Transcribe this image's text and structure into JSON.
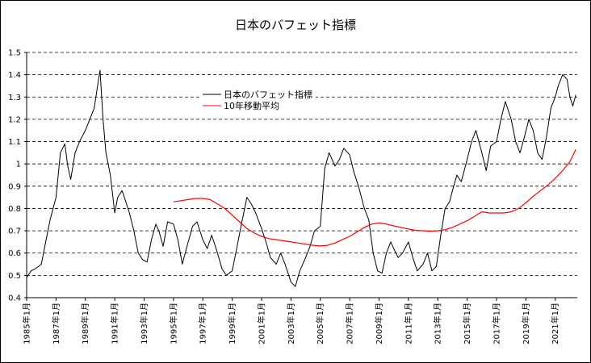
{
  "chart_data": {
    "type": "line",
    "title": "日本のバフェット指標",
    "xlabel": "",
    "ylabel": "",
    "ylim": [
      0.4,
      1.5
    ],
    "xlim": [
      "1985-01",
      "2022-06"
    ],
    "grid": "horizontal dashed",
    "legend_position": "top-center",
    "y_ticks": [
      "0.4",
      "0.5",
      "0.6",
      "0.7",
      "0.8",
      "0.9",
      "1",
      "1.1",
      "1.2",
      "1.3",
      "1.4",
      "1.5"
    ],
    "x_ticks": [
      "1985年1月",
      "1987年1月",
      "1989年1月",
      "1991年1月",
      "1993年1月",
      "1995年1月",
      "1997年1月",
      "1999年1月",
      "2001年1月",
      "2003年1月",
      "2005年1月",
      "2007年1月",
      "2009年1月",
      "2011年1月",
      "2013年1月",
      "2015年1月",
      "2017年1月",
      "2019年1月",
      "2021年1月"
    ],
    "series": [
      {
        "name": "日本のバフェット指標",
        "color": "#000000",
        "x": [
          1985.0,
          1985.3,
          1985.6,
          1986.0,
          1986.3,
          1986.6,
          1987.0,
          1987.3,
          1987.6,
          1987.8,
          1988.0,
          1988.3,
          1988.6,
          1989.0,
          1989.3,
          1989.6,
          1989.9,
          1990.0,
          1990.2,
          1990.4,
          1990.7,
          1991.0,
          1991.2,
          1991.5,
          1991.8,
          1992.0,
          1992.3,
          1992.6,
          1992.9,
          1993.2,
          1993.5,
          1993.8,
          1994.0,
          1994.3,
          1994.6,
          1995.0,
          1995.3,
          1995.6,
          1996.0,
          1996.3,
          1996.6,
          1997.0,
          1997.3,
          1997.6,
          1998.0,
          1998.3,
          1998.6,
          1999.0,
          1999.3,
          1999.6,
          2000.0,
          2000.3,
          2000.6,
          2001.0,
          2001.3,
          2001.6,
          2002.0,
          2002.3,
          2002.6,
          2003.0,
          2003.3,
          2003.6,
          2004.0,
          2004.3,
          2004.6,
          2005.0,
          2005.3,
          2005.6,
          2006.0,
          2006.3,
          2006.6,
          2007.0,
          2007.3,
          2007.6,
          2008.0,
          2008.3,
          2008.6,
          2008.9,
          2009.2,
          2009.5,
          2009.8,
          2010.0,
          2010.3,
          2010.6,
          2011.0,
          2011.3,
          2011.6,
          2012.0,
          2012.3,
          2012.6,
          2012.9,
          2013.2,
          2013.5,
          2013.8,
          2014.0,
          2014.3,
          2014.6,
          2015.0,
          2015.3,
          2015.6,
          2016.0,
          2016.3,
          2016.6,
          2017.0,
          2017.3,
          2017.6,
          2018.0,
          2018.3,
          2018.6,
          2018.9,
          2019.2,
          2019.5,
          2019.8,
          2020.1,
          2020.4,
          2020.7,
          2021.0,
          2021.2,
          2021.5,
          2021.8,
          2022.0,
          2022.2,
          2022.4
        ],
        "values": [
          0.49,
          0.52,
          0.53,
          0.55,
          0.65,
          0.75,
          0.85,
          1.05,
          1.09,
          0.99,
          0.93,
          1.05,
          1.1,
          1.15,
          1.2,
          1.25,
          1.38,
          1.42,
          1.2,
          1.05,
          0.95,
          0.78,
          0.85,
          0.88,
          0.82,
          0.78,
          0.7,
          0.6,
          0.57,
          0.56,
          0.66,
          0.73,
          0.7,
          0.63,
          0.74,
          0.73,
          0.66,
          0.55,
          0.65,
          0.72,
          0.74,
          0.66,
          0.62,
          0.68,
          0.6,
          0.53,
          0.5,
          0.52,
          0.62,
          0.72,
          0.85,
          0.82,
          0.78,
          0.71,
          0.65,
          0.58,
          0.55,
          0.6,
          0.55,
          0.47,
          0.45,
          0.52,
          0.58,
          0.63,
          0.7,
          0.72,
          0.98,
          1.05,
          0.99,
          1.02,
          1.07,
          1.04,
          0.96,
          0.9,
          0.8,
          0.75,
          0.6,
          0.52,
          0.51,
          0.6,
          0.65,
          0.62,
          0.58,
          0.6,
          0.65,
          0.58,
          0.52,
          0.55,
          0.6,
          0.52,
          0.54,
          0.68,
          0.8,
          0.83,
          0.88,
          0.95,
          0.92,
          1.02,
          1.1,
          1.15,
          1.05,
          0.97,
          1.08,
          1.1,
          1.2,
          1.28,
          1.2,
          1.1,
          1.05,
          1.12,
          1.2,
          1.15,
          1.05,
          1.02,
          1.12,
          1.25,
          1.3,
          1.35,
          1.4,
          1.38,
          1.3,
          1.26,
          1.31
        ]
      },
      {
        "name": "10年移動平均",
        "color": "#ff0000",
        "x": [
          1995.0,
          1995.5,
          1996.0,
          1996.5,
          1997.0,
          1997.5,
          1998.0,
          1998.5,
          1999.0,
          1999.5,
          2000.0,
          2000.5,
          2001.0,
          2001.5,
          2002.0,
          2002.5,
          2003.0,
          2003.5,
          2004.0,
          2004.5,
          2005.0,
          2005.5,
          2006.0,
          2006.5,
          2007.0,
          2007.5,
          2008.0,
          2008.5,
          2009.0,
          2009.5,
          2010.0,
          2010.5,
          2011.0,
          2011.5,
          2012.0,
          2012.5,
          2013.0,
          2013.5,
          2014.0,
          2014.5,
          2015.0,
          2015.5,
          2016.0,
          2016.5,
          2017.0,
          2017.5,
          2018.0,
          2018.5,
          2019.0,
          2019.5,
          2020.0,
          2020.5,
          2021.0,
          2021.5,
          2022.0,
          2022.4
        ],
        "values": [
          0.83,
          0.835,
          0.84,
          0.845,
          0.845,
          0.84,
          0.82,
          0.8,
          0.77,
          0.74,
          0.71,
          0.69,
          0.675,
          0.665,
          0.66,
          0.655,
          0.65,
          0.645,
          0.64,
          0.635,
          0.632,
          0.635,
          0.645,
          0.66,
          0.675,
          0.695,
          0.715,
          0.73,
          0.735,
          0.73,
          0.722,
          0.715,
          0.708,
          0.702,
          0.7,
          0.698,
          0.7,
          0.705,
          0.715,
          0.73,
          0.745,
          0.765,
          0.785,
          0.78,
          0.78,
          0.78,
          0.785,
          0.8,
          0.825,
          0.855,
          0.88,
          0.905,
          0.935,
          0.97,
          1.01,
          1.065
        ]
      }
    ]
  }
}
